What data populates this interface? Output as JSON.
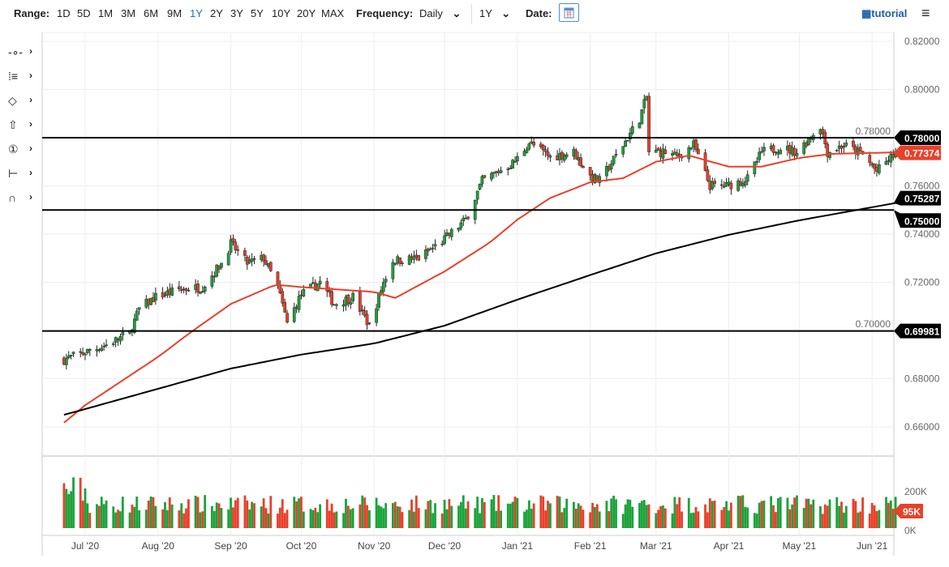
{
  "toolbar": {
    "range_label": "Range:",
    "ranges": [
      "1D",
      "5D",
      "1M",
      "3M",
      "6M",
      "9M",
      "1Y",
      "2Y",
      "3Y",
      "5Y",
      "10Y",
      "20Y",
      "MAX"
    ],
    "active_range": "1Y",
    "frequency_label": "Frequency:",
    "frequency": "Daily",
    "period": "1Y",
    "date_label": "Date:",
    "tutorial": "tutorial"
  },
  "left_tools": [
    "crosshair-tool",
    "fibonacci-tool",
    "shapes-tool",
    "arrow-tool",
    "annotation-tool",
    "measure-tool",
    "magnet-tool"
  ],
  "colors": {
    "up": "#1aa33a",
    "down": "#e8402a",
    "ma50": "#e8402a",
    "ma200": "#000000"
  },
  "chart_data": {
    "type": "candlestick",
    "y_ticks": [
      "0.82000",
      "0.80000",
      "0.78000",
      "0.76000",
      "0.74000",
      "0.72000",
      "0.70000",
      "0.68000",
      "0.66000"
    ],
    "y_tick_values": [
      0.82,
      0.8,
      0.78,
      0.76,
      0.74,
      0.72,
      0.7,
      0.68,
      0.66
    ],
    "x_ticks": [
      {
        "label": "Jul '20",
        "date": "2020-07-01"
      },
      {
        "label": "Aug '20",
        "date": "2020-08-01"
      },
      {
        "label": "Sep '20",
        "date": "2020-09-01"
      },
      {
        "label": "Oct '20",
        "date": "2020-10-01"
      },
      {
        "label": "Nov '20",
        "date": "2020-11-01"
      },
      {
        "label": "Dec '20",
        "date": "2020-12-01"
      },
      {
        "label": "Jan '21",
        "date": "2021-01-01"
      },
      {
        "label": "Feb '21",
        "date": "2021-02-01"
      },
      {
        "label": "Mar '21",
        "date": "2021-03-01"
      },
      {
        "label": "Apr '21",
        "date": "2021-04-01"
      },
      {
        "label": "May '21",
        "date": "2021-05-01"
      },
      {
        "label": "Jun '21",
        "date": "2021-06-01"
      }
    ],
    "ylim": [
      0.655,
      0.825
    ],
    "price_keypoints": [
      [
        "2020-06-22",
        0.688
      ],
      [
        "2020-07-01",
        0.691
      ],
      [
        "2020-07-10",
        0.694
      ],
      [
        "2020-07-20",
        0.699
      ],
      [
        "2020-07-24",
        0.709
      ],
      [
        "2020-07-31",
        0.714
      ],
      [
        "2020-08-10",
        0.717
      ],
      [
        "2020-08-20",
        0.718
      ],
      [
        "2020-08-28",
        0.728
      ],
      [
        "2020-09-01",
        0.736
      ],
      [
        "2020-09-08",
        0.728
      ],
      [
        "2020-09-15",
        0.73
      ],
      [
        "2020-09-21",
        0.718
      ],
      [
        "2020-09-25",
        0.703
      ],
      [
        "2020-10-01",
        0.715
      ],
      [
        "2020-10-09",
        0.72
      ],
      [
        "2020-10-15",
        0.711
      ],
      [
        "2020-10-23",
        0.714
      ],
      [
        "2020-10-30",
        0.702
      ],
      [
        "2020-11-05",
        0.72
      ],
      [
        "2020-11-09",
        0.729
      ],
      [
        "2020-11-20",
        0.73
      ],
      [
        "2020-11-30",
        0.737
      ],
      [
        "2020-12-10",
        0.746
      ],
      [
        "2020-12-17",
        0.762
      ],
      [
        "2020-12-31",
        0.77
      ],
      [
        "2021-01-06",
        0.778
      ],
      [
        "2021-01-15",
        0.772
      ],
      [
        "2021-01-25",
        0.774
      ],
      [
        "2021-02-01",
        0.764
      ],
      [
        "2021-02-05",
        0.762
      ],
      [
        "2021-02-15",
        0.777
      ],
      [
        "2021-02-22",
        0.788
      ],
      [
        "2021-02-25",
        0.797
      ],
      [
        "2021-02-26",
        0.774
      ],
      [
        "2021-03-05",
        0.774
      ],
      [
        "2021-03-10",
        0.772
      ],
      [
        "2021-03-17",
        0.777
      ],
      [
        "2021-03-24",
        0.76
      ],
      [
        "2021-03-31",
        0.76
      ],
      [
        "2021-04-09",
        0.763
      ],
      [
        "2021-04-15",
        0.774
      ],
      [
        "2021-04-23",
        0.776
      ],
      [
        "2021-04-30",
        0.774
      ],
      [
        "2021-05-10",
        0.785
      ],
      [
        "2021-05-13",
        0.774
      ],
      [
        "2021-05-20",
        0.777
      ],
      [
        "2021-05-28",
        0.773
      ],
      [
        "2021-06-03",
        0.766
      ],
      [
        "2021-06-11",
        0.7737
      ]
    ],
    "ma50_keypoints": [
      [
        "2020-06-22",
        0.6617
      ],
      [
        "2020-07-01",
        0.669
      ],
      [
        "2020-08-01",
        0.689
      ],
      [
        "2020-08-15",
        0.6993
      ],
      [
        "2020-09-01",
        0.711
      ],
      [
        "2020-09-20",
        0.719
      ],
      [
        "2020-10-01",
        0.718
      ],
      [
        "2020-11-01",
        0.716
      ],
      [
        "2020-11-10",
        0.7135
      ],
      [
        "2020-12-01",
        0.7245
      ],
      [
        "2020-12-20",
        0.7363
      ],
      [
        "2021-01-01",
        0.746
      ],
      [
        "2021-01-15",
        0.755
      ],
      [
        "2021-02-01",
        0.7615
      ],
      [
        "2021-02-15",
        0.7632
      ],
      [
        "2021-03-01",
        0.77
      ],
      [
        "2021-03-15",
        0.7726
      ],
      [
        "2021-04-01",
        0.768
      ],
      [
        "2021-04-15",
        0.768
      ],
      [
        "2021-05-01",
        0.7716
      ],
      [
        "2021-05-15",
        0.7733
      ],
      [
        "2021-06-11",
        0.7739
      ]
    ],
    "ma200_keypoints": [
      [
        "2020-06-22",
        0.665
      ],
      [
        "2020-07-01",
        0.6674
      ],
      [
        "2020-08-01",
        0.6758
      ],
      [
        "2020-09-01",
        0.6842
      ],
      [
        "2020-10-01",
        0.69
      ],
      [
        "2020-11-01",
        0.6946
      ],
      [
        "2020-12-01",
        0.702
      ],
      [
        "2021-01-01",
        0.7128
      ],
      [
        "2021-02-01",
        0.723
      ],
      [
        "2021-03-01",
        0.732
      ],
      [
        "2021-04-01",
        0.7397
      ],
      [
        "2021-05-01",
        0.7457
      ],
      [
        "2021-06-11",
        0.7529
      ]
    ],
    "horizontal_lines": [
      {
        "value": 0.78,
        "label": "0.78000"
      },
      {
        "value": 0.75,
        "label": "0.75000"
      },
      {
        "value": 0.69981,
        "label": "0.69981"
      }
    ],
    "markers": {
      "last_price": "0.77374",
      "ma200_last": "0.75287"
    },
    "volume": {
      "y_ticks": [
        "200K",
        "0K"
      ],
      "last": "95K",
      "typical": 130000
    }
  }
}
